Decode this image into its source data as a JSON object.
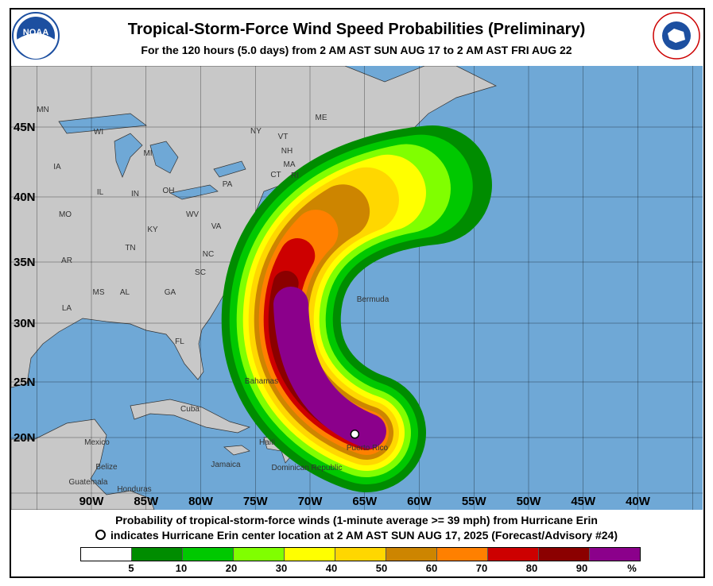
{
  "header": {
    "title": "Tropical-Storm-Force Wind Speed Probabilities (Preliminary)",
    "subtitle": "For the 120 hours (5.0 days) from 2 AM AST SUN AUG 17 to 2 AM AST FRI AUG 22"
  },
  "logos": {
    "left": "NOAA",
    "right": "NATIONAL WEATHER SERVICE"
  },
  "map": {
    "ocean_color": "#6fa8d6",
    "land_color": "#c8c8c8",
    "lon_labels": [
      "90W",
      "85W",
      "80W",
      "75W",
      "70W",
      "65W",
      "60W",
      "55W",
      "50W",
      "45W",
      "40W"
    ],
    "lat_labels": [
      "45N",
      "40N",
      "35N",
      "30N",
      "25N",
      "20N"
    ],
    "state_labels": [
      "MN",
      "WI",
      "MI",
      "IA",
      "IL",
      "IN",
      "OH",
      "PA",
      "NY",
      "VT",
      "NH",
      "ME",
      "MA",
      "CT",
      "RI",
      "MO",
      "KY",
      "WV",
      "VA",
      "TN",
      "NC",
      "AR",
      "MS",
      "AL",
      "GA",
      "SC",
      "LA",
      "FL"
    ],
    "place_labels": [
      "Bermuda",
      "Bahamas",
      "Cuba",
      "Mexico",
      "Belize",
      "Guatemala",
      "Honduras",
      "Haiti",
      "Dominican Republic",
      "Puerto Rico",
      "Jamaica"
    ],
    "storm_center": {
      "lat": 20.3,
      "lon": -65.9,
      "icon": "open-circle"
    }
  },
  "caption": {
    "line1": "Probability of tropical-storm-force winds (1-minute average >= 39 mph) from Hurricane Erin",
    "line2": "indicates Hurricane Erin center location at 2 AM AST SUN AUG 17, 2025 (Forecast/Advisory #24)"
  },
  "legend": {
    "colors": [
      "#ffffff",
      "#008c00",
      "#00c800",
      "#80ff00",
      "#ffff00",
      "#ffd700",
      "#cd8500",
      "#ff8000",
      "#cd0000",
      "#8b0000",
      "#8b008b"
    ],
    "ticks": [
      "5",
      "10",
      "20",
      "30",
      "40",
      "50",
      "60",
      "70",
      "80",
      "90",
      "%"
    ]
  }
}
